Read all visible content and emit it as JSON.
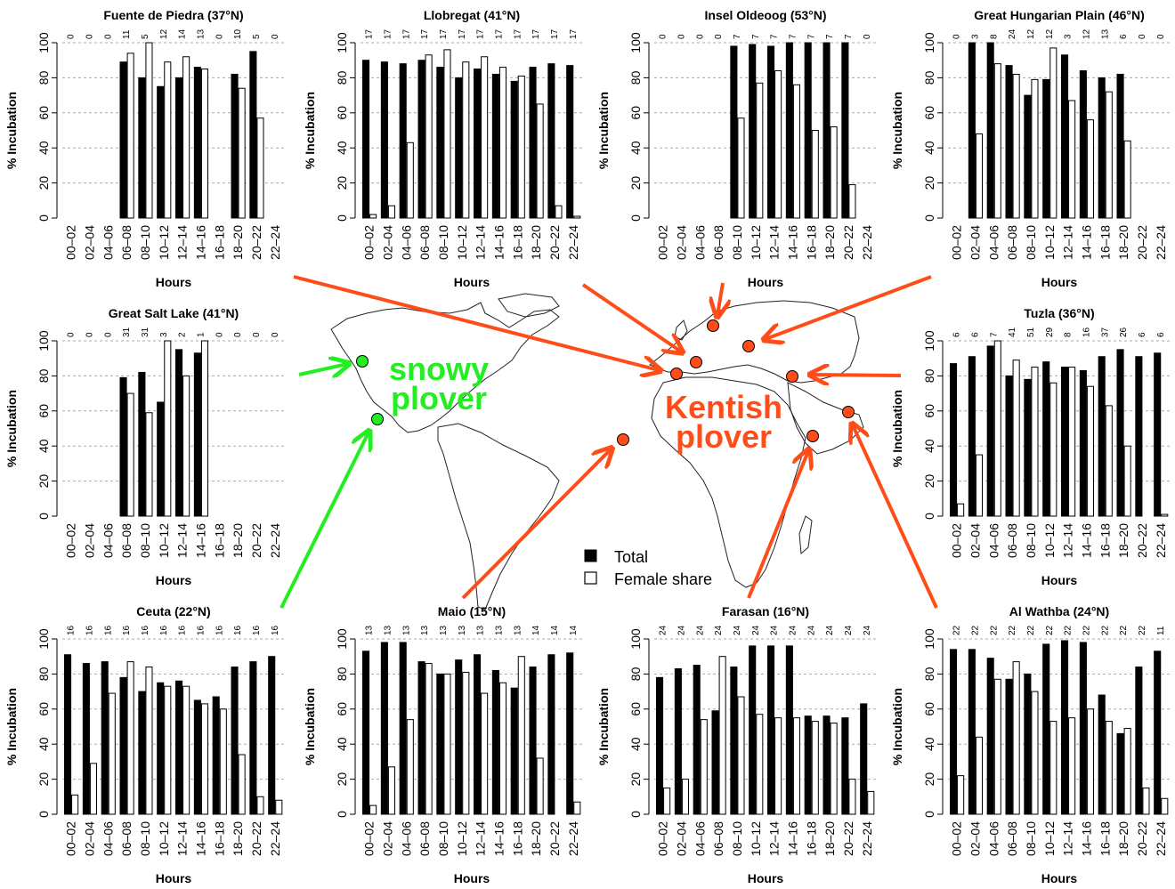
{
  "figure": {
    "legend": {
      "total": "Total",
      "female_share": "Female share"
    },
    "species_labels": [
      {
        "lines": [
          "snowy",
          "plover"
        ],
        "color": "#22ee22"
      },
      {
        "lines": [
          "Kentish",
          "plover"
        ],
        "color": "#ff4d1a"
      }
    ],
    "colors": {
      "snowy": "#22ee22",
      "kentish": "#ff4d1a",
      "arrow_kentish": "#ff4d1a",
      "total_bar": "#000000",
      "female_bar": "#ffffff"
    }
  },
  "chart_data": [
    {
      "type": "bar",
      "title": "Fuente de Piedra (37°N)",
      "xlabel": "Hours",
      "ylabel": "% Incubation",
      "ylim": [
        0,
        100
      ],
      "categories": [
        "00–02",
        "02–04",
        "04–06",
        "06–08",
        "08–10",
        "10–12",
        "12–14",
        "14–16",
        "16–18",
        "18–20",
        "20–22",
        "22–24"
      ],
      "sample_sizes": [
        "0",
        "0",
        "0",
        "11",
        "5",
        "12",
        "14",
        "13",
        "0",
        "10",
        "5",
        "0"
      ],
      "series": [
        {
          "name": "Total",
          "values": [
            null,
            null,
            null,
            89,
            80,
            75,
            80,
            86,
            null,
            82,
            95,
            null
          ]
        },
        {
          "name": "Female share",
          "values": [
            null,
            null,
            null,
            94,
            100,
            89,
            92,
            85,
            null,
            74,
            57,
            null
          ]
        }
      ]
    },
    {
      "type": "bar",
      "title": "Llobregat (41°N)",
      "xlabel": "Hours",
      "ylabel": "% Incubation",
      "ylim": [
        0,
        100
      ],
      "categories": [
        "00–02",
        "02–04",
        "04–06",
        "06–08",
        "08–10",
        "10–12",
        "12–14",
        "14–16",
        "16–18",
        "18–20",
        "20–22",
        "22–24"
      ],
      "sample_sizes": [
        "17",
        "17",
        "17",
        "17",
        "17",
        "17",
        "17",
        "17",
        "17",
        "17",
        "17",
        "17"
      ],
      "series": [
        {
          "name": "Total",
          "values": [
            90,
            89,
            88,
            90,
            86,
            80,
            85,
            82,
            78,
            86,
            88,
            87
          ]
        },
        {
          "name": "Female share",
          "values": [
            2,
            7,
            43,
            93,
            96,
            89,
            92,
            86,
            81,
            65,
            7,
            1
          ]
        }
      ]
    },
    {
      "type": "bar",
      "title": "Insel Oldeoog (53°N)",
      "xlabel": "Hours",
      "ylabel": "% Incubation",
      "ylim": [
        0,
        100
      ],
      "categories": [
        "00–02",
        "02–04",
        "04–06",
        "06–08",
        "08–10",
        "10–12",
        "12–14",
        "14–16",
        "16–18",
        "18–20",
        "20–22",
        "22–24"
      ],
      "sample_sizes": [
        "0",
        "0",
        "0",
        "0",
        "7",
        "7",
        "7",
        "7",
        "7",
        "7",
        "7",
        "0"
      ],
      "series": [
        {
          "name": "Total",
          "values": [
            null,
            null,
            null,
            null,
            98,
            99,
            98,
            100,
            100,
            100,
            100,
            null
          ]
        },
        {
          "name": "Female share",
          "values": [
            null,
            null,
            null,
            null,
            57,
            77,
            84,
            76,
            50,
            52,
            19,
            null
          ]
        }
      ]
    },
    {
      "type": "bar",
      "title": "Great Hungarian Plain (46°N)",
      "xlabel": "Hours",
      "ylabel": "% Incubation",
      "ylim": [
        0,
        100
      ],
      "categories": [
        "00–02",
        "02–04",
        "04–06",
        "06–08",
        "08–10",
        "10–12",
        "12–14",
        "14–16",
        "16–18",
        "18–20",
        "20–22",
        "22–24"
      ],
      "sample_sizes": [
        "0",
        "3",
        "8",
        "24",
        "12",
        "12",
        "3",
        "12",
        "13",
        "6",
        "0",
        "0"
      ],
      "series": [
        {
          "name": "Total",
          "values": [
            null,
            100,
            100,
            87,
            70,
            79,
            93,
            84,
            80,
            82,
            null,
            null
          ]
        },
        {
          "name": "Female share",
          "values": [
            null,
            48,
            88,
            82,
            79,
            97,
            67,
            56,
            72,
            44,
            null,
            null
          ]
        }
      ]
    },
    {
      "type": "bar",
      "title": "Great Salt Lake (41°N)",
      "xlabel": "Hours",
      "ylabel": "% Incubation",
      "ylim": [
        0,
        100
      ],
      "categories": [
        "00–02",
        "02–04",
        "04–06",
        "06–08",
        "08–10",
        "10–12",
        "12–14",
        "14–16",
        "16–18",
        "18–20",
        "20–22",
        "22–24"
      ],
      "sample_sizes": [
        "0",
        "0",
        "0",
        "31",
        "31",
        "3",
        "2",
        "1",
        "0",
        "0",
        "0",
        "0"
      ],
      "series": [
        {
          "name": "Total",
          "values": [
            null,
            null,
            null,
            79,
            82,
            65,
            95,
            93,
            null,
            null,
            null,
            null
          ]
        },
        {
          "name": "Female share",
          "values": [
            null,
            null,
            null,
            70,
            59,
            100,
            80,
            100,
            null,
            null,
            null,
            null
          ]
        }
      ]
    },
    {
      "type": "bar",
      "title": "Tuzla (36°N)",
      "xlabel": "Hours",
      "ylabel": "% Incubation",
      "ylim": [
        0,
        100
      ],
      "categories": [
        "00–02",
        "02–04",
        "04–06",
        "06–08",
        "08–10",
        "10–12",
        "12–14",
        "14–16",
        "16–18",
        "18–20",
        "20–22",
        "22–24"
      ],
      "sample_sizes": [
        "6",
        "6",
        "7",
        "41",
        "51",
        "29",
        "8",
        "16",
        "37",
        "26",
        "6",
        "6"
      ],
      "series": [
        {
          "name": "Total",
          "values": [
            87,
            91,
            97,
            80,
            78,
            88,
            85,
            83,
            91,
            95,
            91,
            93
          ]
        },
        {
          "name": "Female share",
          "values": [
            7,
            35,
            100,
            89,
            85,
            76,
            85,
            74,
            63,
            40,
            0,
            1
          ]
        }
      ]
    },
    {
      "type": "bar",
      "title": "Ceuta (22°N)",
      "xlabel": "Hours",
      "ylabel": "% Incubation",
      "ylim": [
        0,
        100
      ],
      "categories": [
        "00–02",
        "02–04",
        "04–06",
        "06–08",
        "08–10",
        "10–12",
        "12–14",
        "14–16",
        "16–18",
        "18–20",
        "20–22",
        "22–24"
      ],
      "sample_sizes": [
        "16",
        "16",
        "16",
        "16",
        "16",
        "16",
        "16",
        "16",
        "16",
        "16",
        "16",
        "16"
      ],
      "series": [
        {
          "name": "Total",
          "values": [
            91,
            86,
            87,
            78,
            70,
            75,
            76,
            65,
            67,
            84,
            87,
            90
          ]
        },
        {
          "name": "Female share",
          "values": [
            11,
            29,
            69,
            87,
            84,
            73,
            73,
            63,
            60,
            34,
            10,
            8
          ]
        }
      ]
    },
    {
      "type": "bar",
      "title": "Maio (15°N)",
      "xlabel": "Hours",
      "ylabel": "% Incubation",
      "ylim": [
        0,
        100
      ],
      "categories": [
        "00–02",
        "02–04",
        "04–06",
        "06–08",
        "08–10",
        "10–12",
        "12–14",
        "14–16",
        "16–18",
        "18–20",
        "20–22",
        "22–24"
      ],
      "sample_sizes": [
        "13",
        "13",
        "13",
        "13",
        "13",
        "13",
        "13",
        "13",
        "13",
        "14",
        "14",
        "14"
      ],
      "series": [
        {
          "name": "Total",
          "values": [
            93,
            98,
            98,
            87,
            80,
            88,
            91,
            82,
            72,
            84,
            91,
            92
          ]
        },
        {
          "name": "Female share",
          "values": [
            5,
            27,
            54,
            86,
            80,
            81,
            69,
            75,
            90,
            32,
            0,
            7
          ]
        }
      ]
    },
    {
      "type": "bar",
      "title": "Farasan (16°N)",
      "xlabel": "Hours",
      "ylabel": "% Incubation",
      "ylim": [
        0,
        100
      ],
      "categories": [
        "00–02",
        "02–04",
        "04–06",
        "06–08",
        "08–10",
        "10–12",
        "12–14",
        "14–16",
        "16–18",
        "18–20",
        "20–22",
        "22–24"
      ],
      "sample_sizes": [
        "24",
        "24",
        "24",
        "24",
        "24",
        "24",
        "24",
        "24",
        "24",
        "24",
        "24",
        "24"
      ],
      "series": [
        {
          "name": "Total",
          "values": [
            78,
            83,
            85,
            59,
            84,
            96,
            96,
            96,
            56,
            56,
            55,
            63
          ]
        },
        {
          "name": "Female share",
          "values": [
            15,
            20,
            54,
            90,
            67,
            57,
            55,
            55,
            53,
            52,
            20,
            13
          ]
        }
      ]
    },
    {
      "type": "bar",
      "title": "Al Wathba (24°N)",
      "xlabel": "Hours",
      "ylabel": "% Incubation",
      "ylim": [
        0,
        100
      ],
      "categories": [
        "00–02",
        "02–04",
        "04–06",
        "06–08",
        "08–10",
        "10–12",
        "12–14",
        "14–16",
        "16–18",
        "18–20",
        "20–22",
        "22–24"
      ],
      "sample_sizes": [
        "22",
        "22",
        "22",
        "22",
        "22",
        "22",
        "22",
        "22",
        "22",
        "22",
        "22",
        "11"
      ],
      "series": [
        {
          "name": "Total",
          "values": [
            94,
            94,
            89,
            77,
            80,
            97,
            99,
            98,
            68,
            46,
            84,
            93
          ]
        },
        {
          "name": "Female share",
          "values": [
            22,
            44,
            77,
            87,
            70,
            53,
            55,
            60,
            53,
            49,
            15,
            9
          ]
        }
      ]
    }
  ]
}
